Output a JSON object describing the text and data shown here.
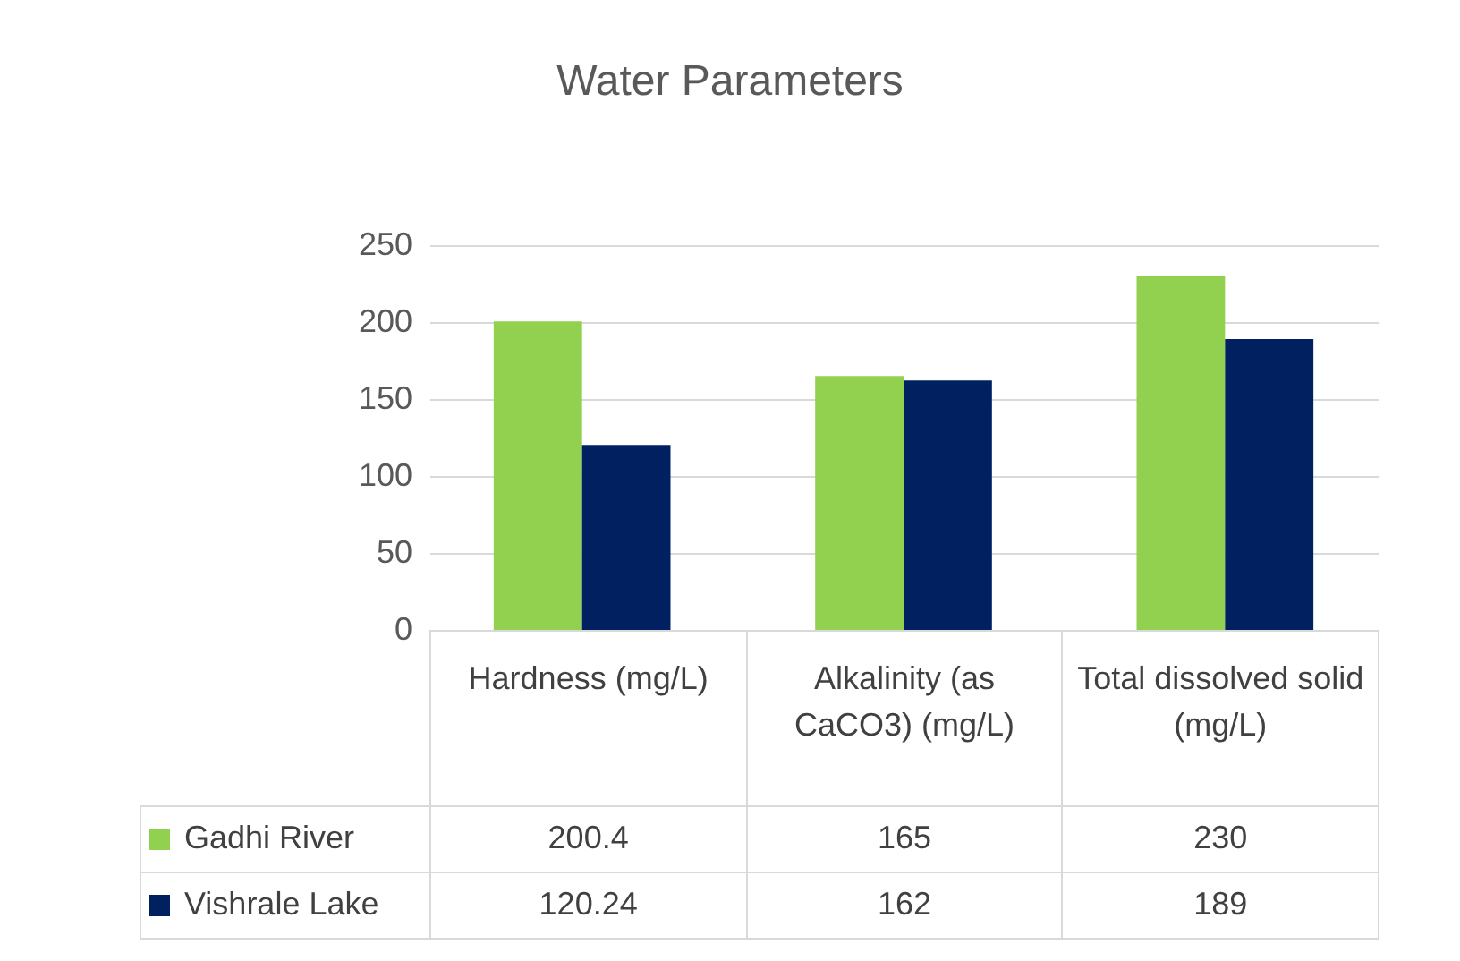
{
  "chart_data": {
    "type": "bar",
    "title": "Water Parameters",
    "categories": [
      "Hardness (mg/L)",
      "Alkalinity (as CaCO3) (mg/L)",
      "Total dissolved solid (mg/L)"
    ],
    "series": [
      {
        "name": "Gadhi River",
        "color": "#92d050",
        "values": [
          200.4,
          165,
          230
        ]
      },
      {
        "name": "Vishrale Lake",
        "color": "#002060",
        "values": [
          120.24,
          162,
          189
        ]
      }
    ],
    "ylim": [
      0,
      250
    ],
    "yticks": [
      0,
      50,
      100,
      150,
      200,
      250
    ],
    "grid": "y",
    "legend": "bottom",
    "data_labels": true
  }
}
